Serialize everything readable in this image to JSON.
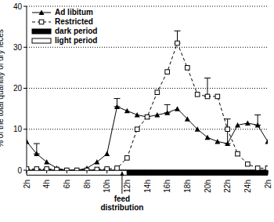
{
  "chart_data": {
    "type": "line",
    "y_label": "% of the total quantity of dry feces",
    "x": [
      2,
      3,
      4,
      5,
      6,
      7,
      8,
      9,
      10,
      11,
      12,
      13,
      14,
      15,
      16,
      17,
      18,
      19,
      20,
      21,
      22,
      23,
      24,
      25,
      26
    ],
    "series": [
      {
        "name": "Ad libitum",
        "color": "#000000",
        "marker": "triangle",
        "line_style": "solid",
        "values": [
          7,
          4,
          2,
          0.5,
          0,
          0,
          0.5,
          2,
          4,
          15.5,
          14.5,
          13.5,
          13,
          13.5,
          14,
          15,
          12.5,
          10,
          8,
          7,
          6.5,
          11,
          11.5,
          11,
          7
        ],
        "errors": [
          null,
          2.5,
          null,
          null,
          null,
          null,
          null,
          null,
          null,
          2,
          null,
          null,
          null,
          null,
          2,
          null,
          null,
          null,
          null,
          null,
          6,
          null,
          null,
          2.5,
          null
        ]
      },
      {
        "name": "Restricted",
        "color": "#000000",
        "marker": "square",
        "line_style": "dashed",
        "values": [
          0.3,
          0.3,
          0.3,
          0.2,
          0,
          0,
          0,
          0.2,
          0.3,
          0.5,
          3,
          10,
          13,
          19,
          24,
          31,
          25,
          18.5,
          18,
          18,
          10,
          4,
          1.5,
          0.5,
          0.5
        ],
        "errors": [
          null,
          null,
          null,
          null,
          null,
          null,
          null,
          null,
          null,
          null,
          null,
          null,
          null,
          null,
          null,
          3,
          null,
          null,
          4.5,
          null,
          null,
          null,
          null,
          null,
          null
        ]
      }
    ],
    "periods": [
      {
        "name": "dark period",
        "color": "#000000",
        "start": 12,
        "end": 26
      },
      {
        "name": "light period",
        "color": "#ffffff",
        "start": 2,
        "end": 12
      }
    ],
    "annotations": [
      {
        "text": "feed distribution",
        "x": 11.5
      }
    ],
    "xlim": [
      2,
      26
    ],
    "xticks": [
      {
        "value": 2,
        "label": "2h"
      },
      {
        "value": 4,
        "label": "4h"
      },
      {
        "value": 6,
        "label": "6h"
      },
      {
        "value": 8,
        "label": "8h"
      },
      {
        "value": 10,
        "label": "10h"
      },
      {
        "value": 12,
        "label": "12h"
      },
      {
        "value": 14,
        "label": "14h"
      },
      {
        "value": 16,
        "label": "16h"
      },
      {
        "value": 18,
        "label": "18h"
      },
      {
        "value": 20,
        "label": "20h"
      },
      {
        "value": 22,
        "label": "22h"
      },
      {
        "value": 24,
        "label": "24h"
      },
      {
        "value": 26,
        "label": "2h"
      }
    ],
    "ylim": [
      0,
      40
    ],
    "yticks": [
      0,
      10,
      20,
      30,
      40
    ],
    "grid": true,
    "legend": "upper left"
  }
}
